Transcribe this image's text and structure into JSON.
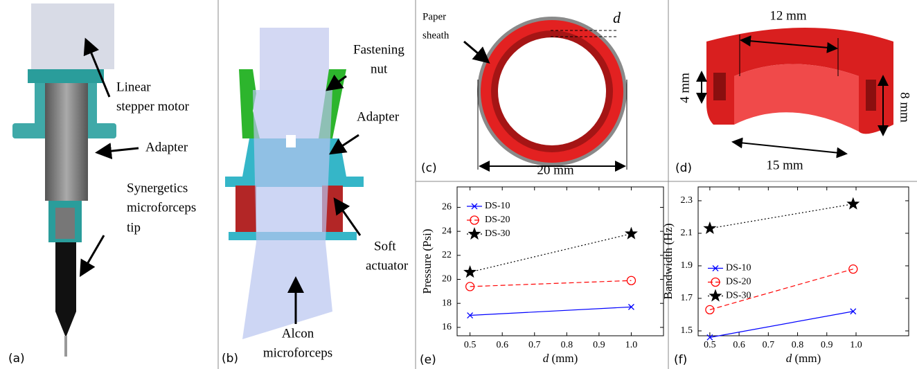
{
  "panels": {
    "labels": [
      "(a)",
      "(b)",
      "(c)",
      "(d)",
      "(e)",
      "(f)"
    ]
  },
  "annotations": {
    "a": {
      "motor": [
        "Linear",
        "stepper motor"
      ],
      "adapter": "Adapter",
      "tip": [
        "Synergetics",
        "microforceps",
        "tip"
      ]
    },
    "b": {
      "nut": [
        "Fastening",
        "nut"
      ],
      "adapter": "Adapter",
      "actuator": [
        "Soft",
        "actuator"
      ],
      "forceps": [
        "Alcon",
        "microforceps"
      ]
    },
    "c": {
      "sheath": [
        "Paper",
        "sheath"
      ],
      "d": "d",
      "diameter": "20 mm"
    },
    "d": {
      "outer": "12 mm",
      "height_left": "4 mm",
      "height_right": "8 mm",
      "inner": "15 mm"
    }
  },
  "chart_data": [
    {
      "type": "line",
      "ylabel": "Pressure (Psi)",
      "xlabel": {
        "symbol": "d",
        "unit": "(mm)"
      },
      "x": [
        0.5,
        1.0
      ],
      "series": [
        {
          "name": "DS-10",
          "color": "#0000ff",
          "marker": "x",
          "linestyle": "solid",
          "values": [
            17.0,
            17.7
          ]
        },
        {
          "name": "DS-20",
          "color": "#ff0000",
          "marker": "circle",
          "linestyle": "dashed",
          "values": [
            19.4,
            19.9
          ]
        },
        {
          "name": "DS-30",
          "color": "#000000",
          "marker": "star",
          "linestyle": "dotted",
          "values": [
            20.6,
            23.8
          ]
        }
      ],
      "xlim": [
        0.46,
        1.1
      ],
      "xticks": [
        0.5,
        0.6,
        0.7,
        0.8,
        0.9,
        {
          "value": 1,
          "label": "1.0"
        }
      ],
      "ylim": [
        15.3,
        27.7
      ],
      "yticks": [
        16,
        18,
        20,
        22,
        24,
        26
      ],
      "grid": false,
      "legend": "upper left"
    },
    {
      "type": "line",
      "ylabel": "Bandwidth (Hz)",
      "xlabel": {
        "symbol": "d",
        "unit": "(mm)"
      },
      "x": [
        0.5,
        0.99
      ],
      "series": [
        {
          "name": "DS-10",
          "color": "#0000ff",
          "marker": "x",
          "linestyle": "solid",
          "values": [
            1.46,
            1.62
          ]
        },
        {
          "name": "DS-20",
          "color": "#ff0000",
          "marker": "circle",
          "linestyle": "dashed",
          "values": [
            1.63,
            1.88
          ]
        },
        {
          "name": "DS-30",
          "color": "#000000",
          "marker": "star",
          "linestyle": "dotted",
          "values": [
            2.13,
            2.28
          ]
        }
      ],
      "xlim": [
        0.46,
        1.18
      ],
      "xticks": [
        0.5,
        0.6,
        0.7,
        0.8,
        0.9,
        {
          "value": 1,
          "label": "1.0"
        }
      ],
      "ylim": [
        1.47,
        2.385
      ],
      "yticks": [
        1.5,
        1.7,
        1.9,
        2.1,
        2.3
      ],
      "grid": false,
      "legend": "center left"
    }
  ]
}
